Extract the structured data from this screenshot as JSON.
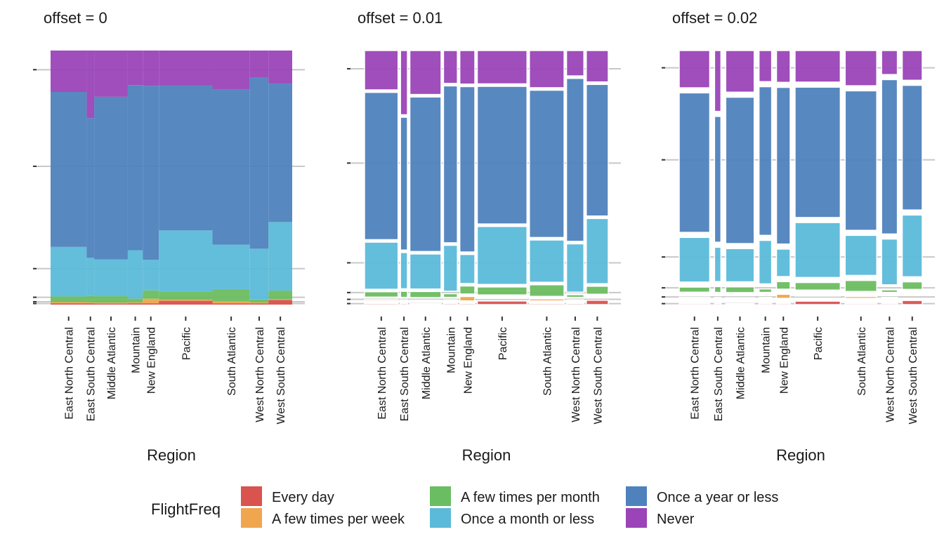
{
  "chart_data": {
    "type": "mosaic",
    "legend": {
      "title": "FlightFreq",
      "position": "bottom",
      "entries": [
        {
          "label": "Every day",
          "color": "#d9534f"
        },
        {
          "label": "A few times per week",
          "color": "#f0a64e"
        },
        {
          "label": "A few times per month",
          "color": "#6bbd61"
        },
        {
          "label": "Once a month or less",
          "color": "#5bbad9"
        },
        {
          "label": "Once a year or less",
          "color": "#4f82bd"
        },
        {
          "label": "Never",
          "color": "#9a44b8"
        }
      ]
    },
    "x_label": "Region",
    "categories": [
      "East North Central",
      "East South Central",
      "Middle Atlantic",
      "Mountain",
      "New England",
      "Pacific",
      "South Atlantic",
      "West North Central",
      "West South Central"
    ],
    "category_weights": [
      0.145,
      0.03,
      0.135,
      0.06,
      0.065,
      0.215,
      0.15,
      0.075,
      0.095
    ],
    "series": [
      {
        "name": "Every day",
        "values": [
          0.005,
          0.005,
          0.004,
          0.005,
          0.005,
          0.015,
          0.005,
          0.005,
          0.018
        ]
      },
      {
        "name": "A few times per week",
        "values": [
          0.005,
          0.004,
          0.004,
          0.004,
          0.018,
          0.004,
          0.008,
          0.004,
          0.004
        ]
      },
      {
        "name": "A few times per month",
        "values": [
          0.022,
          0.025,
          0.025,
          0.015,
          0.033,
          0.033,
          0.048,
          0.011,
          0.033
        ]
      },
      {
        "name": "Once a month or less",
        "values": [
          0.195,
          0.15,
          0.145,
          0.19,
          0.12,
          0.24,
          0.175,
          0.2,
          0.27
        ]
      },
      {
        "name": "Once a year or less",
        "values": [
          0.61,
          0.55,
          0.64,
          0.65,
          0.685,
          0.57,
          0.61,
          0.675,
          0.545
        ]
      },
      {
        "name": "Never",
        "values": [
          0.163,
          0.266,
          0.182,
          0.136,
          0.139,
          0.138,
          0.154,
          0.105,
          0.13
        ]
      }
    ],
    "panels": [
      {
        "title": "offset = 0",
        "offset": 0
      },
      {
        "title": "offset = 0.01",
        "offset": 0.01
      },
      {
        "title": "offset = 0.02",
        "offset": 0.02
      }
    ],
    "grid": true,
    "y_tick_labels": "none"
  }
}
